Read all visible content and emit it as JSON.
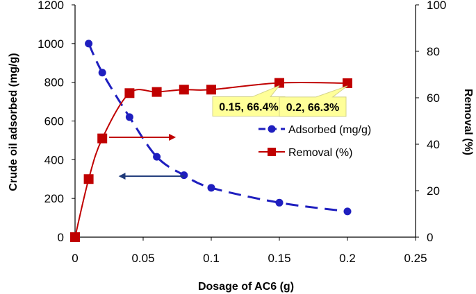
{
  "chart_data": {
    "type": "line",
    "xlabel": "Dosage of AC6 (g)",
    "ylabel_left": "Crude oil adsorbed (mg/g)",
    "ylabel_right": "Removal (%)",
    "xlim": [
      0,
      0.25
    ],
    "ylim_left": [
      0,
      1200
    ],
    "ylim_right": [
      0,
      100
    ],
    "x_ticks": [
      "0",
      "0.05",
      "0.1",
      "0.15",
      "0.2",
      "0.25"
    ],
    "x_tick_values": [
      0,
      0.05,
      0.1,
      0.15,
      0.2,
      0.25
    ],
    "y_left_ticks": [
      "0",
      "200",
      "400",
      "600",
      "800",
      "1000",
      "1200"
    ],
    "y_left_tick_values": [
      0,
      200,
      400,
      600,
      800,
      1000,
      1200
    ],
    "y_right_ticks": [
      "0",
      "20",
      "40",
      "60",
      "80",
      "100"
    ],
    "y_right_tick_values": [
      0,
      20,
      40,
      60,
      80,
      100
    ],
    "grid": false,
    "legend_position": "center-right",
    "series": [
      {
        "name": "Adsorbed (mg/g)",
        "axis": "left",
        "color": "#1f1fbf",
        "line_style": "dashed",
        "marker": "circle",
        "x": [
          0.01,
          0.02,
          0.04,
          0.06,
          0.08,
          0.1,
          0.15,
          0.2
        ],
        "y": [
          1000,
          850,
          620,
          415,
          320,
          255,
          178,
          133
        ]
      },
      {
        "name": "Removal (%)",
        "axis": "right",
        "color": "#c00000",
        "line_style": "solid",
        "marker": "square",
        "x": [
          0,
          0.01,
          0.02,
          0.04,
          0.06,
          0.08,
          0.1,
          0.15,
          0.2
        ],
        "y": [
          0,
          25,
          42.5,
          62,
          62.5,
          63.5,
          63.5,
          66.4,
          66.3
        ]
      }
    ],
    "annotations": [
      {
        "text": "0.15, 66.4%",
        "x": 0.15,
        "y": 66.4,
        "axis": "right"
      },
      {
        "text": "0.2, 66.3%",
        "x": 0.2,
        "y": 66.3,
        "axis": "right"
      }
    ],
    "arrows": [
      {
        "series": "Removal (%)",
        "direction": "right",
        "color": "#c00000",
        "from": [
          0.025,
          43
        ],
        "to": [
          0.073,
          43
        ],
        "axis": "right"
      },
      {
        "series": "Adsorbed (mg/g)",
        "direction": "left",
        "color": "#1f3a7a",
        "from": [
          0.08,
          315
        ],
        "to": [
          0.033,
          315
        ],
        "axis": "left"
      }
    ]
  }
}
